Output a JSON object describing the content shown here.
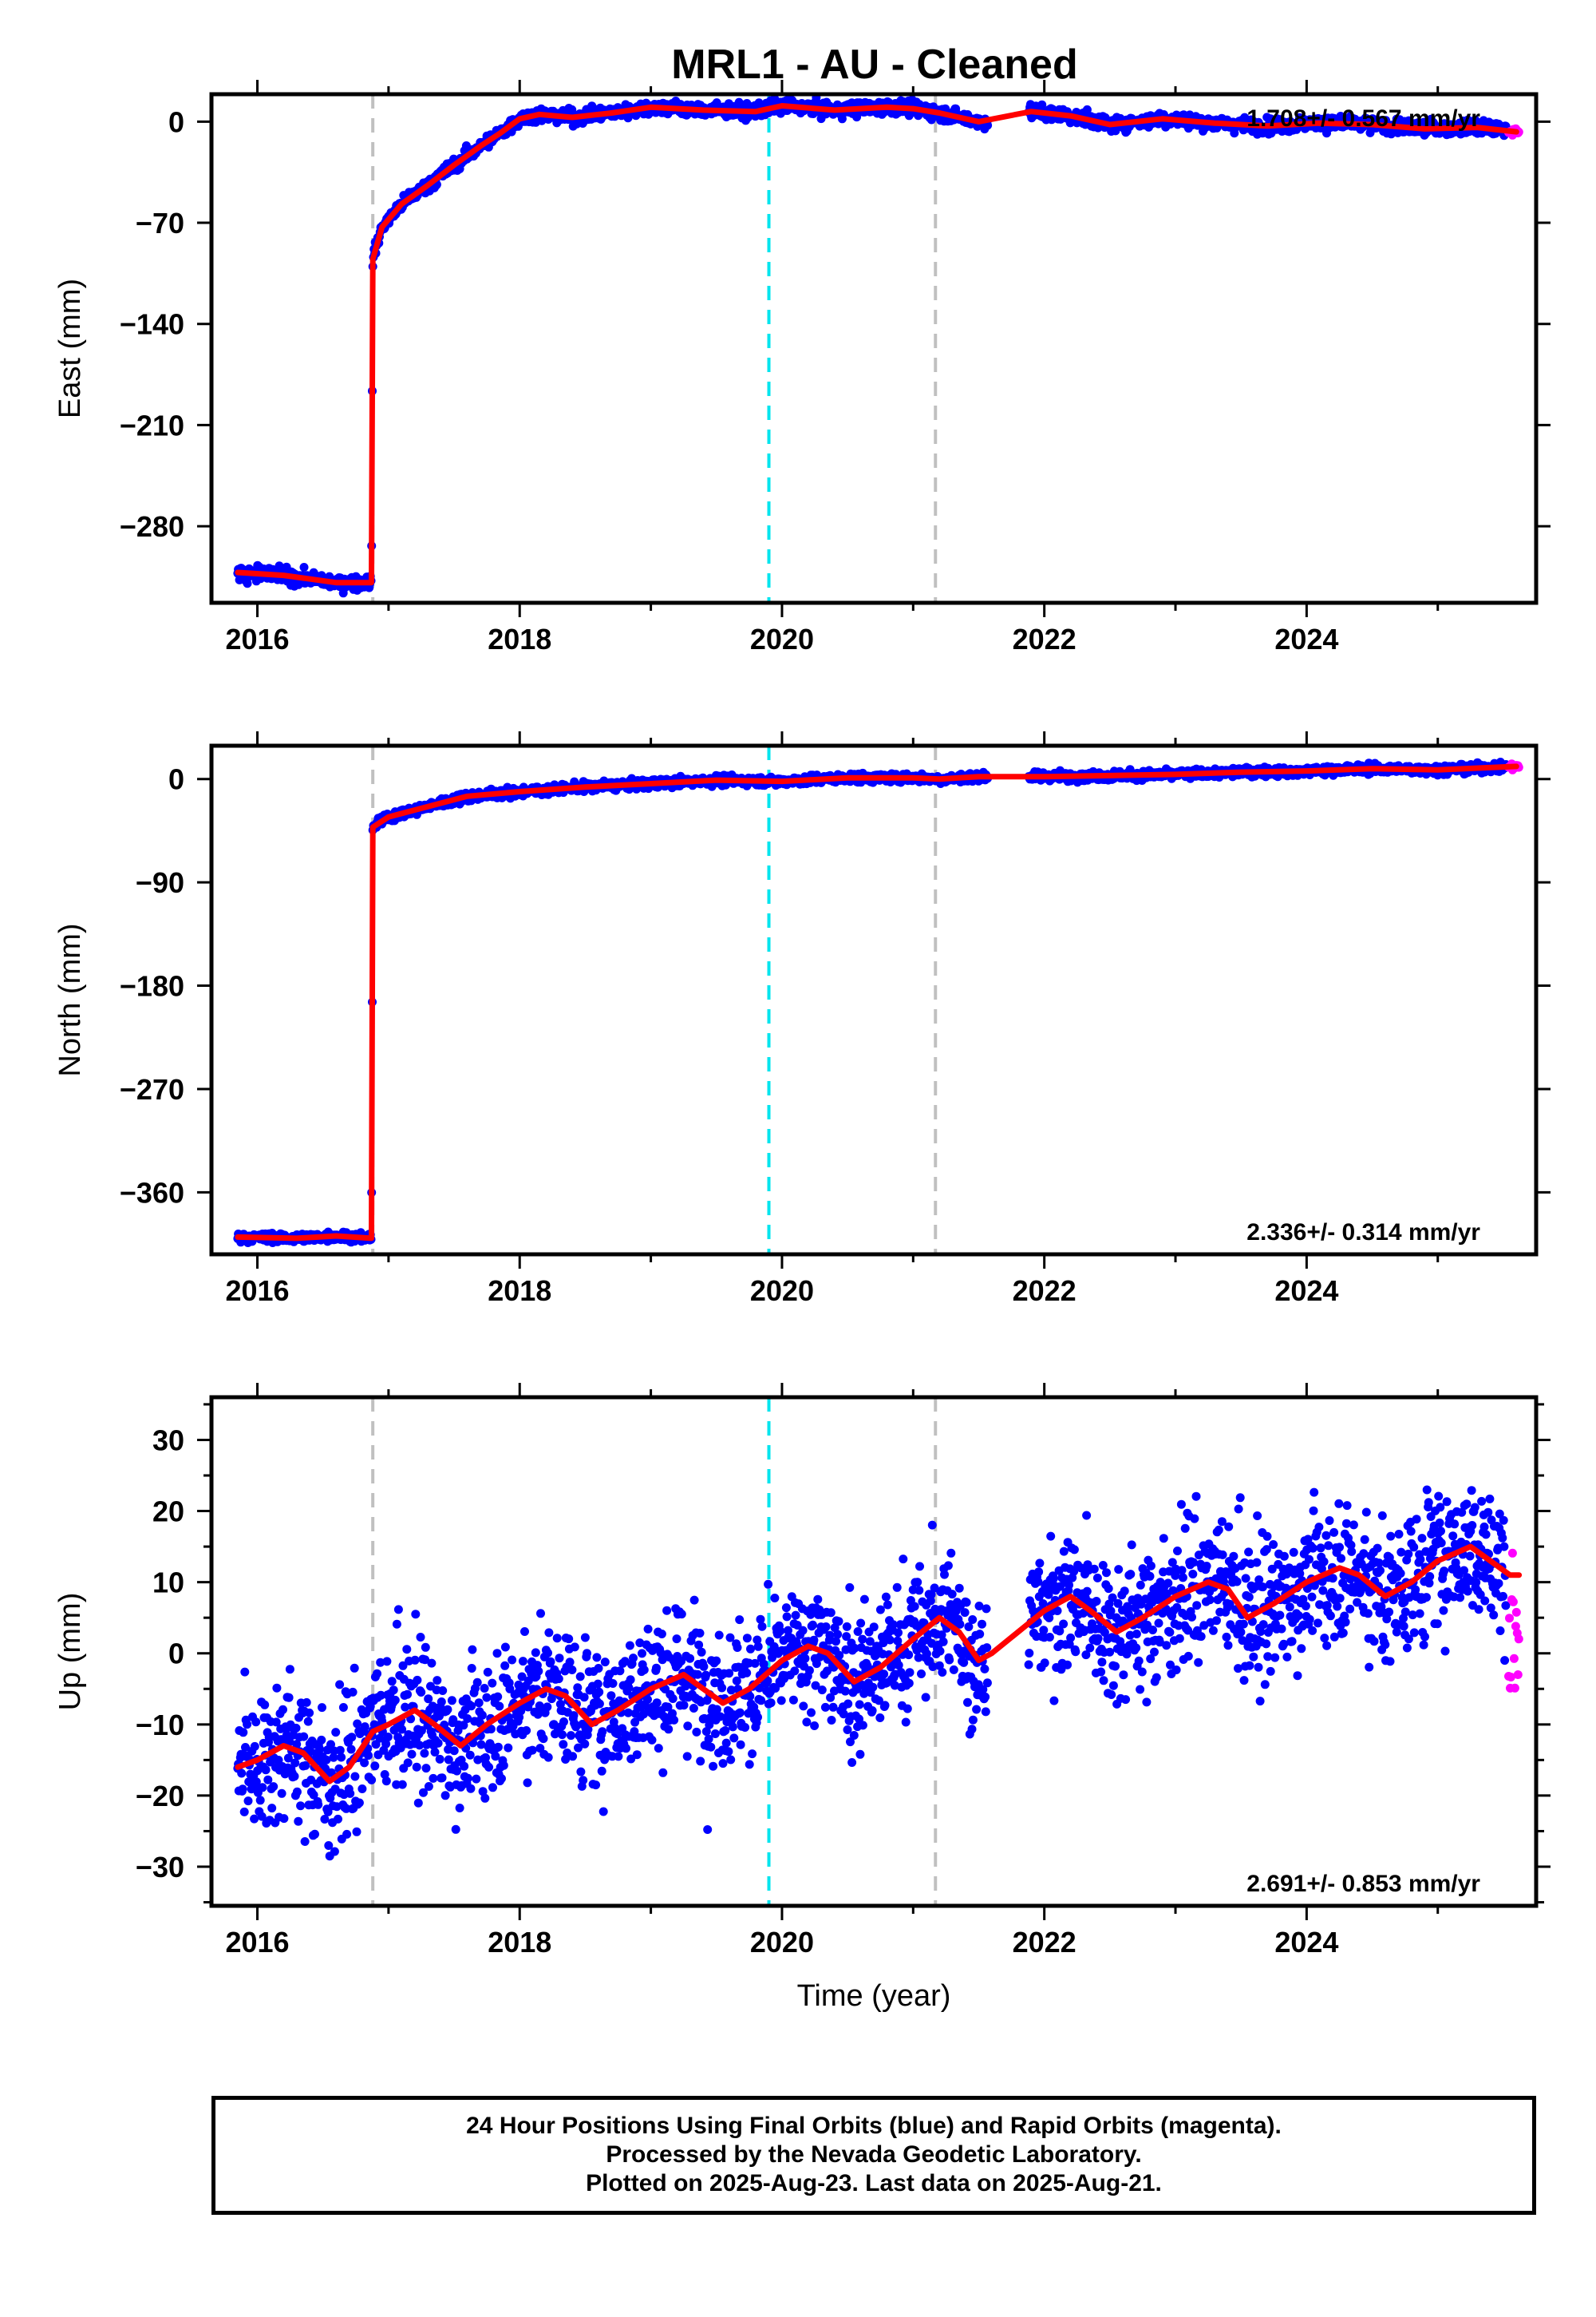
{
  "chart_data": [
    {
      "type": "scatter",
      "title": "MRL1  - AU - Cleaned",
      "ylabel": "East (mm)",
      "xlabel": "",
      "xlim": [
        2015.65,
        2025.75
      ],
      "ylim": [
        -333,
        19
      ],
      "xticks": [
        2016,
        2018,
        2020,
        2022,
        2024
      ],
      "yticks": [
        0,
        -70,
        -140,
        -210,
        -280
      ],
      "rate": "1.708+/- 0.567 mm/yr",
      "rate_position": "top-right",
      "vlines": [
        {
          "x": 2016.88,
          "color": "#c0c0c0",
          "style": "dashed"
        },
        {
          "x": 2019.9,
          "color": "#00e5ee",
          "style": "dashed"
        },
        {
          "x": 2021.17,
          "color": "#c0c0c0",
          "style": "dashed"
        }
      ],
      "model": [
        [
          2015.85,
          -312
        ],
        [
          2016.2,
          -314
        ],
        [
          2016.6,
          -319
        ],
        [
          2016.87,
          -319
        ],
        [
          2016.88,
          -95
        ],
        [
          2016.95,
          -73
        ],
        [
          2017.1,
          -57
        ],
        [
          2017.3,
          -44
        ],
        [
          2017.5,
          -30
        ],
        [
          2017.7,
          -17
        ],
        [
          2017.85,
          -8
        ],
        [
          2018.0,
          2
        ],
        [
          2018.15,
          5
        ],
        [
          2018.4,
          3
        ],
        [
          2018.7,
          6
        ],
        [
          2019.0,
          10
        ],
        [
          2019.4,
          8
        ],
        [
          2019.8,
          7
        ],
        [
          2020.0,
          11
        ],
        [
          2020.4,
          8
        ],
        [
          2020.8,
          10
        ],
        [
          2021.0,
          9
        ],
        [
          2021.2,
          6
        ],
        [
          2021.5,
          0
        ],
        [
          2021.9,
          7
        ],
        [
          2022.2,
          4
        ],
        [
          2022.5,
          -2
        ],
        [
          2022.9,
          2
        ],
        [
          2023.3,
          -1
        ],
        [
          2023.7,
          -3
        ],
        [
          2024.1,
          -1
        ],
        [
          2024.5,
          -2
        ],
        [
          2024.9,
          -5
        ],
        [
          2025.3,
          -4
        ],
        [
          2025.6,
          -7
        ]
      ],
      "final_orbits": {
        "color": "#0000ff",
        "from": 2015.85,
        "to": 2025.52,
        "gaps": [
          [
            2021.57,
            2021.88
          ]
        ],
        "scatter_sd": 2.4
      },
      "rapid_orbits": {
        "color": "#ff00ff",
        "from": 2025.54,
        "to": 2025.62,
        "scatter_sd": 1.5
      }
    },
    {
      "type": "scatter",
      "ylabel": "North (mm)",
      "xlabel": "",
      "xlim": [
        2015.65,
        2025.75
      ],
      "ylim": [
        -414,
        29
      ],
      "xticks": [
        2016,
        2018,
        2020,
        2022,
        2024
      ],
      "yticks": [
        0,
        -90,
        -180,
        -270,
        -360
      ],
      "rate": "2.336+/- 0.314 mm/yr",
      "rate_position": "bottom-right",
      "vlines": [
        {
          "x": 2016.88,
          "color": "#c0c0c0",
          "style": "dashed"
        },
        {
          "x": 2019.9,
          "color": "#00e5ee",
          "style": "dashed"
        },
        {
          "x": 2021.17,
          "color": "#c0c0c0",
          "style": "dashed"
        }
      ],
      "model": [
        [
          2015.85,
          -399
        ],
        [
          2016.3,
          -400
        ],
        [
          2016.6,
          -398
        ],
        [
          2016.87,
          -400
        ],
        [
          2016.88,
          -42
        ],
        [
          2017.0,
          -33
        ],
        [
          2017.3,
          -24
        ],
        [
          2017.6,
          -15
        ],
        [
          2018.0,
          -11
        ],
        [
          2018.5,
          -7
        ],
        [
          2019.0,
          -4
        ],
        [
          2019.5,
          -1
        ],
        [
          2020.0,
          -2
        ],
        [
          2020.5,
          1
        ],
        [
          2021.0,
          1
        ],
        [
          2021.2,
          0
        ],
        [
          2021.5,
          2
        ],
        [
          2022.0,
          2
        ],
        [
          2022.5,
          3
        ],
        [
          2023.0,
          4
        ],
        [
          2023.5,
          6
        ],
        [
          2024.0,
          7
        ],
        [
          2024.5,
          9
        ],
        [
          2025.0,
          8
        ],
        [
          2025.6,
          11
        ]
      ],
      "final_orbits": {
        "color": "#0000ff",
        "from": 2015.85,
        "to": 2025.52,
        "gaps": [
          [
            2021.57,
            2021.88
          ]
        ],
        "scatter_sd": 2.0
      },
      "rapid_orbits": {
        "color": "#ff00ff",
        "from": 2025.54,
        "to": 2025.62,
        "scatter_sd": 1.2
      }
    },
    {
      "type": "scatter",
      "ylabel": "Up (mm)",
      "xlabel": "Time (year)",
      "xlim": [
        2015.65,
        2025.75
      ],
      "ylim": [
        -35.5,
        36
      ],
      "xticks": [
        2016,
        2018,
        2020,
        2022,
        2024
      ],
      "yticks": [
        30,
        20,
        10,
        0,
        -10,
        -20,
        -30
      ],
      "rate": "2.691+/- 0.853 mm/yr",
      "rate_position": "bottom-right",
      "vlines": [
        {
          "x": 2016.88,
          "color": "#c0c0c0",
          "style": "dashed"
        },
        {
          "x": 2019.9,
          "color": "#00e5ee",
          "style": "dashed"
        },
        {
          "x": 2021.17,
          "color": "#c0c0c0",
          "style": "dashed"
        }
      ],
      "model": [
        [
          2015.85,
          -16
        ],
        [
          2016.0,
          -15
        ],
        [
          2016.2,
          -13
        ],
        [
          2016.35,
          -14
        ],
        [
          2016.55,
          -18
        ],
        [
          2016.7,
          -16
        ],
        [
          2016.88,
          -11
        ],
        [
          2017.0,
          -10
        ],
        [
          2017.2,
          -8
        ],
        [
          2017.35,
          -10
        ],
        [
          2017.55,
          -13
        ],
        [
          2017.75,
          -10
        ],
        [
          2018.0,
          -7
        ],
        [
          2018.2,
          -5
        ],
        [
          2018.35,
          -6
        ],
        [
          2018.55,
          -10
        ],
        [
          2018.75,
          -8
        ],
        [
          2019.0,
          -5
        ],
        [
          2019.25,
          -3
        ],
        [
          2019.4,
          -5
        ],
        [
          2019.55,
          -7
        ],
        [
          2019.75,
          -5
        ],
        [
          2020.0,
          -1
        ],
        [
          2020.2,
          1
        ],
        [
          2020.35,
          0
        ],
        [
          2020.55,
          -4
        ],
        [
          2020.75,
          -2
        ],
        [
          2021.0,
          2
        ],
        [
          2021.2,
          5
        ],
        [
          2021.35,
          3
        ],
        [
          2021.5,
          -1
        ],
        [
          2021.6,
          0
        ],
        [
          2021.8,
          3
        ],
        [
          2022.0,
          6
        ],
        [
          2022.2,
          8
        ],
        [
          2022.35,
          6
        ],
        [
          2022.55,
          3
        ],
        [
          2022.75,
          5
        ],
        [
          2023.0,
          8
        ],
        [
          2023.25,
          10
        ],
        [
          2023.4,
          9
        ],
        [
          2023.55,
          5
        ],
        [
          2023.75,
          7
        ],
        [
          2024.0,
          10
        ],
        [
          2024.25,
          12
        ],
        [
          2024.4,
          11
        ],
        [
          2024.6,
          8
        ],
        [
          2024.8,
          10
        ],
        [
          2025.0,
          13
        ],
        [
          2025.25,
          15
        ],
        [
          2025.4,
          13
        ],
        [
          2025.55,
          11
        ],
        [
          2025.62,
          11
        ]
      ],
      "final_orbits": {
        "color": "#0000ff",
        "from": 2015.85,
        "to": 2025.52,
        "gaps": [
          [
            2021.57,
            2021.88
          ]
        ],
        "scatter_sd": 4.8
      },
      "rapid_orbits": {
        "color": "#ff00ff",
        "from": 2025.54,
        "to": 2025.62,
        "scatter_sd": 5
      }
    }
  ],
  "colors": {
    "final": "#0000ff",
    "rapid": "#ff00ff",
    "model": "#ff0000",
    "offset": "#c0c0c0",
    "equipment": "#00e5ee"
  },
  "footer": {
    "line1": "24 Hour Positions Using Final Orbits (blue) and Rapid Orbits (magenta).",
    "line2": "Processed by the Nevada Geodetic Laboratory.",
    "line3": "Plotted on 2025-Aug-23. Last data on 2025-Aug-21."
  }
}
